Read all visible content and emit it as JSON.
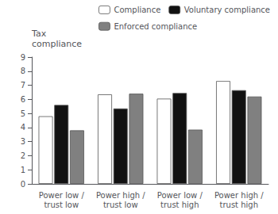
{
  "chart_data": {
    "type": "bar",
    "ylabel": "Tax\ncompliance",
    "categories": [
      "Power low /\ntrust low",
      "Power high /\ntrust low",
      "Power low /\ntrust high",
      "Power high /\ntrust high"
    ],
    "series": [
      {
        "name": "Compliance",
        "color": "#ffffff",
        "values": [
          4.8,
          6.35,
          6.05,
          7.3
        ]
      },
      {
        "name": "Voluntary compliance",
        "color": "#111111",
        "values": [
          5.6,
          5.35,
          6.45,
          6.65
        ]
      },
      {
        "name": "Enforced compliance",
        "color": "#808080",
        "values": [
          3.8,
          6.4,
          3.85,
          6.2
        ]
      }
    ],
    "ylim": [
      0,
      9
    ],
    "yticks": [
      0,
      1,
      2,
      3,
      4,
      5,
      6,
      7,
      8,
      9
    ],
    "grid": false,
    "legend": "upper right"
  }
}
